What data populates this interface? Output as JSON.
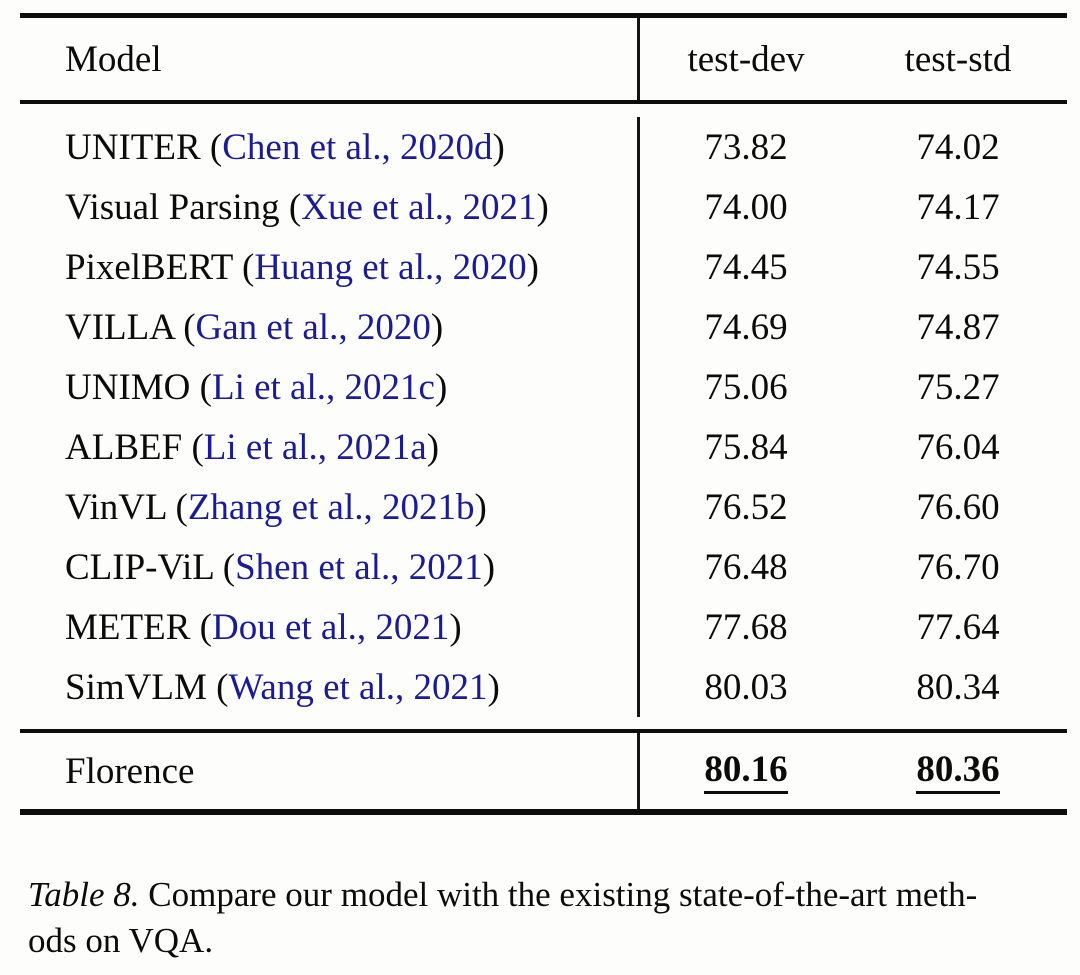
{
  "table": {
    "columns": [
      "Model",
      "test-dev",
      "test-std"
    ],
    "paren_open": " (",
    "paren_close": ")",
    "rows": [
      {
        "model": "UNITER",
        "cite": "Chen et al., 2020d",
        "test_dev": "73.82",
        "test_std": "74.02"
      },
      {
        "model": "Visual Parsing",
        "cite": "Xue et al., 2021",
        "test_dev": "74.00",
        "test_std": "74.17"
      },
      {
        "model": "PixelBERT",
        "cite": "Huang et al., 2020",
        "test_dev": "74.45",
        "test_std": "74.55"
      },
      {
        "model": "VILLA",
        "cite": "Gan et al., 2020",
        "test_dev": "74.69",
        "test_std": "74.87"
      },
      {
        "model": "UNIMO",
        "cite": "Li et al., 2021c",
        "test_dev": "75.06",
        "test_std": "75.27"
      },
      {
        "model": "ALBEF",
        "cite": "Li et al., 2021a",
        "test_dev": "75.84",
        "test_std": "76.04"
      },
      {
        "model": "VinVL",
        "cite": "Zhang et al., 2021b",
        "test_dev": "76.52",
        "test_std": "76.60"
      },
      {
        "model": "CLIP-ViL",
        "cite": "Shen et al., 2021",
        "test_dev": "76.48",
        "test_std": "76.70"
      },
      {
        "model": "METER",
        "cite": "Dou et al., 2021",
        "test_dev": "77.68",
        "test_std": "77.64"
      },
      {
        "model": "SimVLM",
        "cite": "Wang et al., 2021",
        "test_dev": "80.03",
        "test_std": "80.34"
      }
    ],
    "highlight_row": {
      "model": "Florence",
      "test_dev": "80.16",
      "test_std": "80.36"
    }
  },
  "caption": {
    "label": "Table 8.",
    "line1": "Compare our model with the existing state-of-the-art meth-",
    "line2": "ods on VQA."
  },
  "colors": {
    "citation_link": "#1b1b94",
    "text": "#0b0b0b",
    "rule": "#0d0d0d",
    "background": "#fdfdfb"
  },
  "chart_data": {
    "type": "table",
    "title": "Table 8. Compare our model with the existing state-of-the-art methods on VQA.",
    "categories": [
      "UNITER",
      "Visual Parsing",
      "PixelBERT",
      "VILLA",
      "UNIMO",
      "ALBEF",
      "VinVL",
      "CLIP-ViL",
      "METER",
      "SimVLM",
      "Florence"
    ],
    "series": [
      {
        "name": "test-dev",
        "values": [
          73.82,
          74.0,
          74.45,
          74.69,
          75.06,
          75.84,
          76.52,
          76.48,
          77.68,
          80.03,
          80.16
        ]
      },
      {
        "name": "test-std",
        "values": [
          74.02,
          74.17,
          74.55,
          74.87,
          75.27,
          76.04,
          76.6,
          76.7,
          77.64,
          80.34,
          80.36
        ]
      }
    ]
  }
}
